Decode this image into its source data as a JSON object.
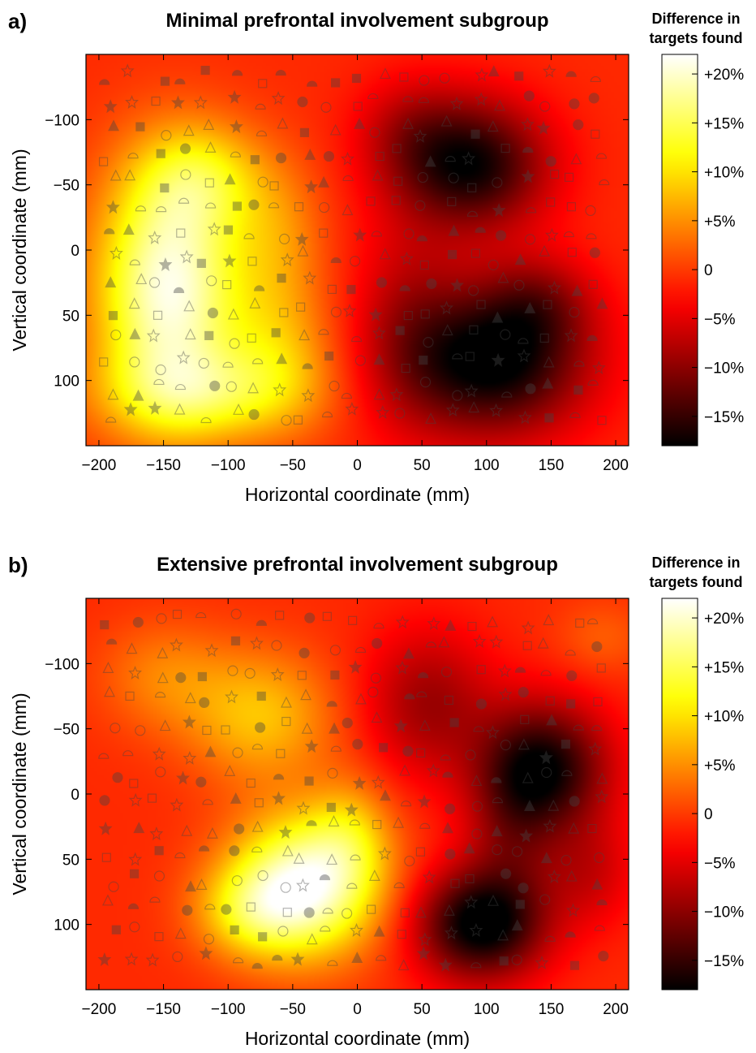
{
  "chart_data": [
    {
      "type": "heatmap",
      "panel_label": "a)",
      "title": "Minimal prefrontal involvement subgroup",
      "xlabel": "Horizontal coordinate (mm)",
      "ylabel": "Vertical coordinate (mm)",
      "xlim": [
        -210,
        210
      ],
      "ylim": [
        -150,
        150
      ],
      "y_inverted": true,
      "x_ticks": [
        -200,
        -150,
        -100,
        -50,
        0,
        50,
        100,
        150,
        200
      ],
      "x_tick_labels": [
        "−200",
        "−150",
        "−100",
        "−50",
        "0",
        "50",
        "100",
        "150",
        "200"
      ],
      "y_ticks": [
        -100,
        -50,
        0,
        50,
        100
      ],
      "y_tick_labels": [
        "−100",
        "−50",
        "0",
        "50",
        "100"
      ],
      "colorbar": {
        "title_lines": [
          "Difference in",
          "targets found"
        ],
        "range": [
          -18,
          22
        ],
        "ticks": [
          20,
          15,
          10,
          5,
          0,
          -5,
          -10,
          -15
        ],
        "tick_labels": [
          "+20%",
          "+15%",
          "+10%",
          "+5%",
          "0",
          "−5%",
          "−10%",
          "−15%"
        ],
        "colormap": "hot"
      },
      "background_value": -1,
      "blobs": [
        {
          "x": -145,
          "y": 30,
          "sx": 40,
          "sy": 65,
          "amp": 22
        },
        {
          "x": -120,
          "y": -55,
          "sx": 35,
          "sy": 30,
          "amp": 9
        },
        {
          "x": -120,
          "y": 110,
          "sx": 55,
          "sy": 25,
          "amp": 10
        },
        {
          "x": -60,
          "y": 80,
          "sx": 30,
          "sy": 40,
          "amp": 7
        },
        {
          "x": -60,
          "y": -10,
          "sx": 25,
          "sy": 40,
          "amp": 5
        },
        {
          "x": 90,
          "y": -65,
          "sx": 40,
          "sy": 35,
          "amp": -16
        },
        {
          "x": 105,
          "y": 85,
          "sx": 50,
          "sy": 40,
          "amp": -18
        },
        {
          "x": 140,
          "y": 40,
          "sx": 30,
          "sy": 25,
          "amp": -6
        },
        {
          "x": 40,
          "y": 50,
          "sx": 30,
          "sy": 60,
          "amp": -5
        },
        {
          "x": 40,
          "y": -90,
          "sx": 30,
          "sy": 30,
          "amp": -5
        }
      ]
    },
    {
      "type": "heatmap",
      "panel_label": "b)",
      "title": "Extensive prefrontal involvement subgroup",
      "xlabel": "Horizontal coordinate (mm)",
      "ylabel": "Vertical coordinate (mm)",
      "xlim": [
        -210,
        210
      ],
      "ylim": [
        -150,
        150
      ],
      "y_inverted": true,
      "x_ticks": [
        -200,
        -150,
        -100,
        -50,
        0,
        50,
        100,
        150,
        200
      ],
      "x_tick_labels": [
        "−200",
        "−150",
        "−100",
        "−50",
        "0",
        "50",
        "100",
        "150",
        "200"
      ],
      "y_ticks": [
        -100,
        -50,
        0,
        50,
        100
      ],
      "y_tick_labels": [
        "−100",
        "−50",
        "0",
        "50",
        "100"
      ],
      "colorbar": {
        "title_lines": [
          "Difference in",
          "targets found"
        ],
        "range": [
          -18,
          22
        ],
        "ticks": [
          20,
          15,
          10,
          5,
          0,
          -5,
          -10,
          -15
        ],
        "tick_labels": [
          "+20%",
          "+15%",
          "+10%",
          "+5%",
          "0",
          "−5%",
          "−10%",
          "−15%"
        ],
        "colormap": "hot"
      },
      "background_value": -1,
      "blobs": [
        {
          "x": -40,
          "y": 70,
          "sx": 40,
          "sy": 38,
          "amp": 22
        },
        {
          "x": -85,
          "y": 90,
          "sx": 30,
          "sy": 25,
          "amp": 8
        },
        {
          "x": -75,
          "y": -60,
          "sx": 40,
          "sy": 35,
          "amp": 9
        },
        {
          "x": -150,
          "y": -90,
          "sx": 35,
          "sy": 30,
          "amp": 5
        },
        {
          "x": -5,
          "y": 30,
          "sx": 22,
          "sy": 30,
          "amp": 6
        },
        {
          "x": 145,
          "y": -20,
          "sx": 35,
          "sy": 35,
          "amp": -16
        },
        {
          "x": 95,
          "y": 100,
          "sx": 35,
          "sy": 30,
          "amp": -18
        },
        {
          "x": 120,
          "y": 30,
          "sx": 25,
          "sy": 45,
          "amp": -6
        },
        {
          "x": 55,
          "y": -70,
          "sx": 35,
          "sy": 40,
          "amp": -8
        },
        {
          "x": 180,
          "y": 60,
          "sx": 25,
          "sy": 30,
          "amp": -5
        },
        {
          "x": 190,
          "y": -120,
          "sx": 25,
          "sy": 20,
          "amp": 3
        }
      ]
    }
  ]
}
